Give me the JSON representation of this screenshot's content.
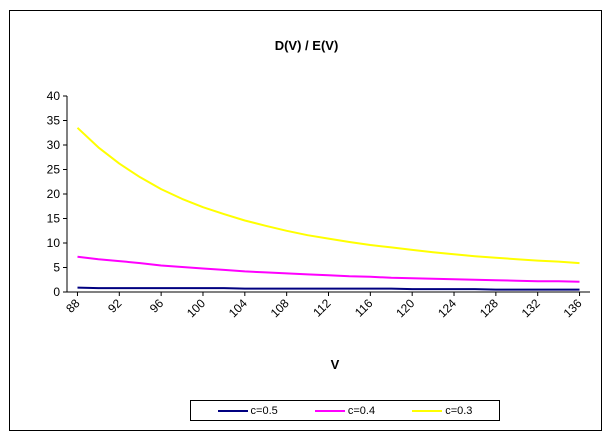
{
  "chart_data": {
    "type": "line",
    "title": "D(V) / E(V)",
    "xlabel": "V",
    "ylabel": "",
    "x": [
      88,
      90,
      92,
      94,
      96,
      98,
      100,
      102,
      104,
      106,
      108,
      110,
      112,
      114,
      116,
      118,
      120,
      122,
      124,
      126,
      128,
      130,
      132,
      134,
      136
    ],
    "xlim": [
      87,
      137
    ],
    "ylim": [
      0,
      40
    ],
    "x_ticks": [
      88,
      92,
      96,
      100,
      104,
      108,
      112,
      116,
      120,
      124,
      128,
      132,
      136
    ],
    "y_ticks": [
      0,
      5,
      10,
      15,
      20,
      25,
      30,
      35,
      40
    ],
    "grid": false,
    "legend_position": "bottom",
    "series": [
      {
        "name": "c=0.5",
        "color": "#000080",
        "values": [
          0.9,
          0.8,
          0.8,
          0.8,
          0.8,
          0.8,
          0.8,
          0.8,
          0.7,
          0.7,
          0.7,
          0.7,
          0.7,
          0.7,
          0.7,
          0.7,
          0.6,
          0.6,
          0.6,
          0.6,
          0.5,
          0.5,
          0.5,
          0.5,
          0.5
        ]
      },
      {
        "name": "c=0.4",
        "color": "#ff00ff",
        "values": [
          7.2,
          6.7,
          6.3,
          5.9,
          5.4,
          5.1,
          4.8,
          4.5,
          4.2,
          4.0,
          3.8,
          3.6,
          3.4,
          3.2,
          3.1,
          2.9,
          2.8,
          2.7,
          2.6,
          2.5,
          2.4,
          2.3,
          2.2,
          2.2,
          2.1
        ]
      },
      {
        "name": "c=0.3",
        "color": "#ffff00",
        "values": [
          33.5,
          29.5,
          26.2,
          23.4,
          21.0,
          19.0,
          17.3,
          15.9,
          14.6,
          13.5,
          12.5,
          11.6,
          10.9,
          10.2,
          9.6,
          9.1,
          8.6,
          8.1,
          7.7,
          7.3,
          7.0,
          6.7,
          6.4,
          6.2,
          5.9
        ]
      }
    ]
  }
}
